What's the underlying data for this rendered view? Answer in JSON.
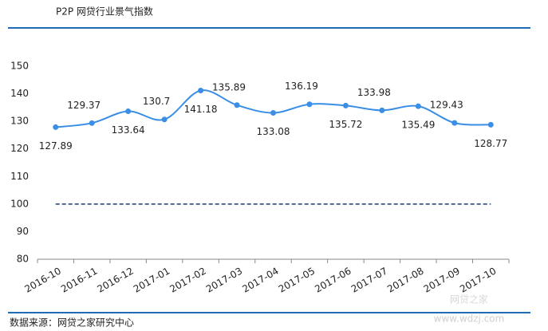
{
  "chart_data": {
    "type": "line",
    "title": "P2P 网贷行业景气指数",
    "source": "数据来源：网贷之家研究中心",
    "watermark": "网贷之家",
    "watermark_url": "www.wdzj.com",
    "categories": [
      "2016-10",
      "2016-11",
      "2016-12",
      "2017-01",
      "2017-02",
      "2017-03",
      "2017-04",
      "2017-05",
      "2017-06",
      "2017-07",
      "2017-08",
      "2017-09",
      "2017-10"
    ],
    "series": [
      {
        "color": "#3a8ee6",
        "values": [
          127.89,
          129.37,
          133.64,
          130.7,
          141.18,
          135.89,
          133.08,
          136.19,
          135.72,
          133.98,
          135.49,
          129.43,
          128.77
        ]
      }
    ],
    "reference_line": {
      "value": 100,
      "color": "#1f3b73"
    },
    "ylim": [
      80,
      150
    ],
    "yticks": [
      80,
      90,
      100,
      110,
      120,
      130,
      140,
      150
    ],
    "grid": false
  }
}
